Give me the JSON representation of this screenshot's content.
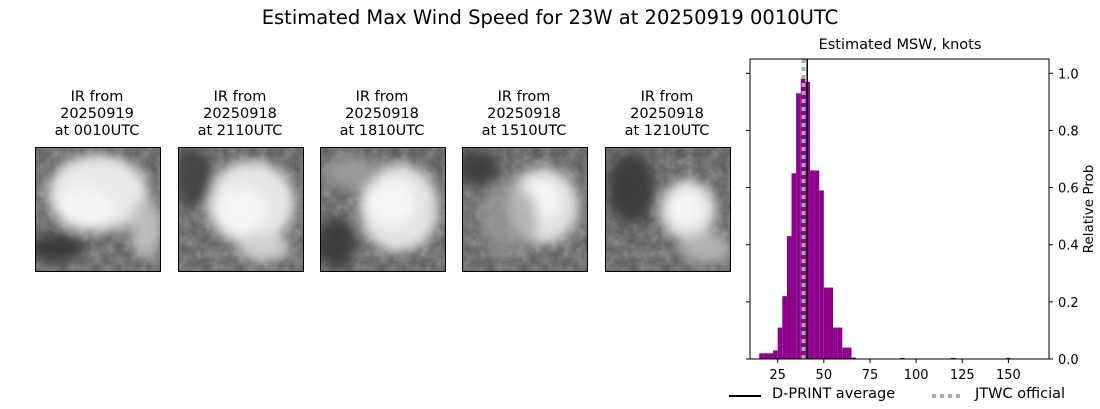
{
  "figure": {
    "title": "Estimated Max Wind Speed for 23W at 20250919 0010UTC"
  },
  "ir_panels": [
    {
      "line1": "IR from",
      "line2": "20250919",
      "line3": "at 0010UTC"
    },
    {
      "line1": "IR from",
      "line2": "20250918",
      "line3": "at 2110UTC"
    },
    {
      "line1": "IR from",
      "line2": "20250918",
      "line3": "at 1810UTC"
    },
    {
      "line1": "IR from",
      "line2": "20250918",
      "line3": "at 1510UTC"
    },
    {
      "line1": "IR from",
      "line2": "20250918",
      "line3": "at 1210UTC"
    }
  ],
  "chart_data": {
    "type": "bar",
    "title": "Estimated MSW, knots",
    "xlabel": "",
    "ylabel": "Relative Prob",
    "xlim": [
      10,
      172
    ],
    "ylim": [
      0,
      1.05
    ],
    "x_ticks": [
      25,
      50,
      75,
      100,
      125,
      150
    ],
    "y_ticks": [
      0.0,
      0.2,
      0.4,
      0.6,
      0.8,
      1.0
    ],
    "y_tick_labels": [
      "0.0",
      "0.2",
      "0.4",
      "0.6",
      "0.8",
      "1.0"
    ],
    "y_axis_side": "right",
    "bin_width": 2.5,
    "bars": [
      {
        "x": 16.25,
        "y": 0.02
      },
      {
        "x": 18.75,
        "y": 0.02
      },
      {
        "x": 21.25,
        "y": 0.02
      },
      {
        "x": 23.75,
        "y": 0.03
      },
      {
        "x": 26.25,
        "y": 0.11
      },
      {
        "x": 28.75,
        "y": 0.22
      },
      {
        "x": 31.25,
        "y": 0.43
      },
      {
        "x": 33.75,
        "y": 0.65
      },
      {
        "x": 36.25,
        "y": 0.93
      },
      {
        "x": 38.75,
        "y": 0.98
      },
      {
        "x": 41.25,
        "y": 0.97
      },
      {
        "x": 43.75,
        "y": 0.66
      },
      {
        "x": 46.25,
        "y": 0.66
      },
      {
        "x": 48.75,
        "y": 0.59
      },
      {
        "x": 51.25,
        "y": 0.25
      },
      {
        "x": 53.75,
        "y": 0.25
      },
      {
        "x": 56.25,
        "y": 0.11
      },
      {
        "x": 58.75,
        "y": 0.11
      },
      {
        "x": 61.25,
        "y": 0.04
      },
      {
        "x": 63.75,
        "y": 0.04
      },
      {
        "x": 66.25,
        "y": 0.005
      },
      {
        "x": 92.5,
        "y": 0.004
      },
      {
        "x": 120,
        "y": 0.004
      },
      {
        "x": 150,
        "y": 0.004
      }
    ],
    "bar_color": "#8b008b",
    "lines": [
      {
        "name": "D-PRINT average",
        "x": 41,
        "color": "#000000",
        "style": "solid"
      },
      {
        "name": "JTWC official",
        "x": 39,
        "color": "#aaaaaa",
        "style": "dotted"
      }
    ],
    "legend_placement": "bottom"
  }
}
